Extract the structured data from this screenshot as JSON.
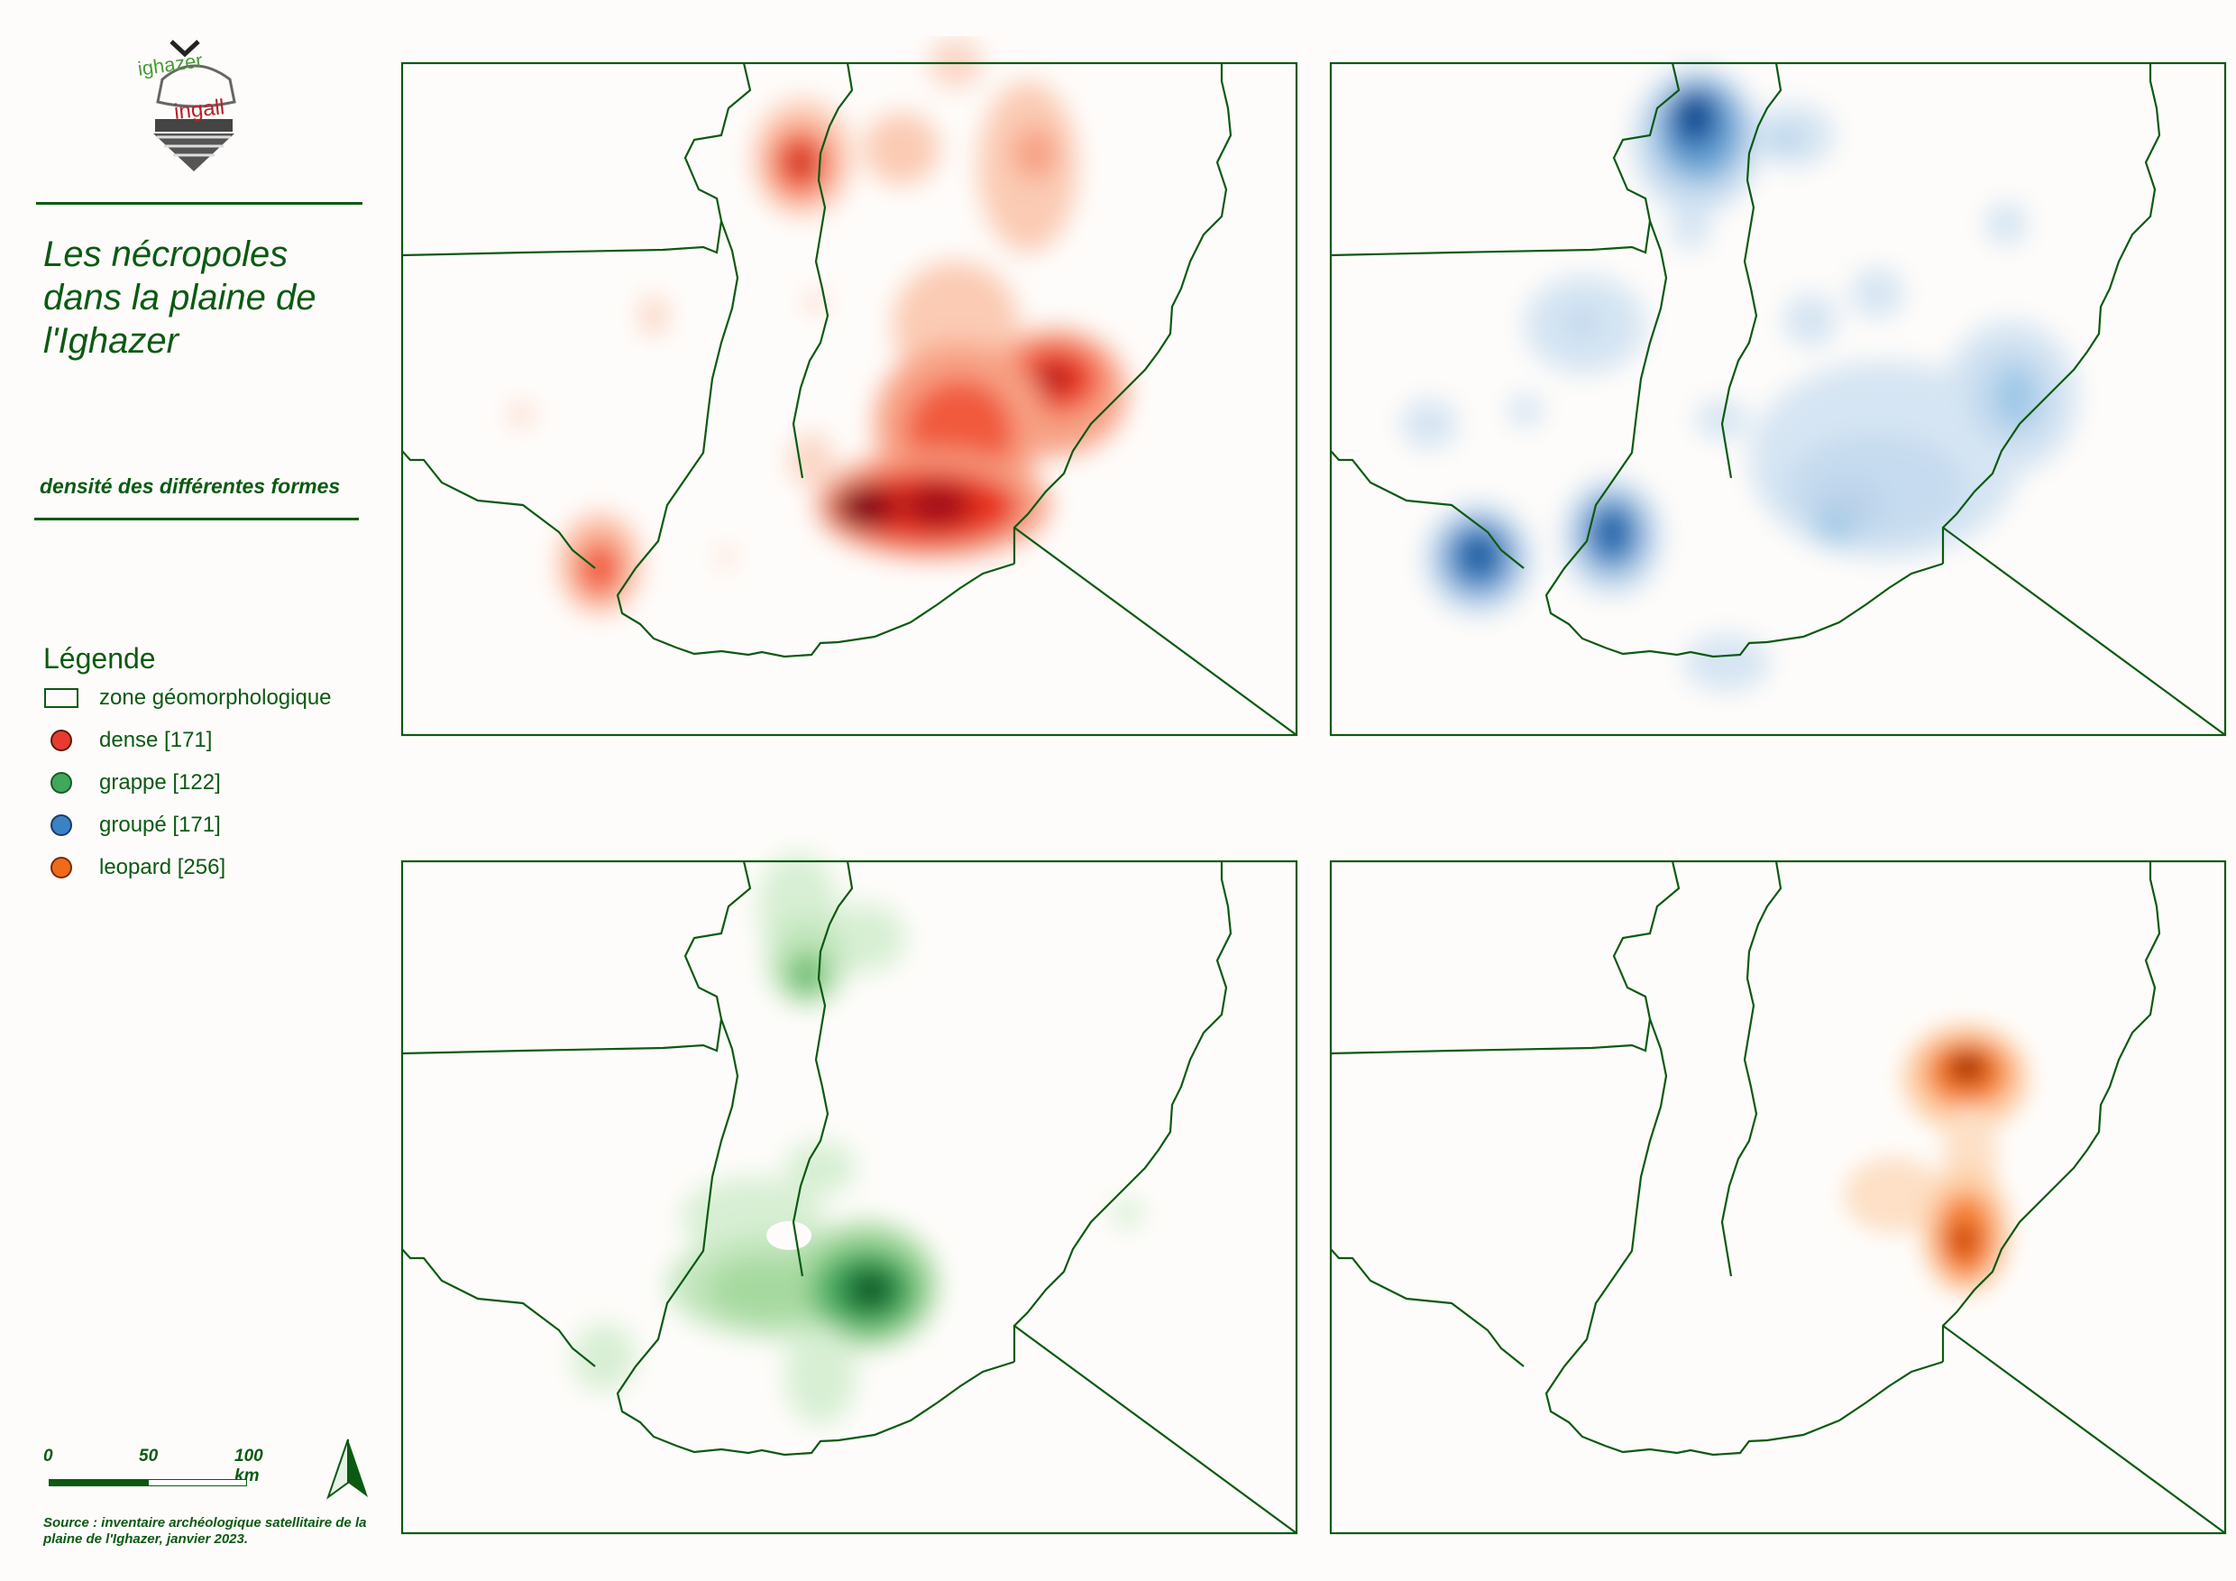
{
  "logo": {
    "text_top": "ighazer",
    "text_bottom": "ingall"
  },
  "title": "Les nécropoles dans la plaine de l'Ighazer",
  "subtitle": "densité des différentes formes",
  "legend": {
    "title": "Légende",
    "items": [
      {
        "label": "zone géomorphologique",
        "type": "box"
      },
      {
        "label": "dense [171]",
        "color": "#e83b2f"
      },
      {
        "label": "grappe [122]",
        "color": "#3fa85a"
      },
      {
        "label": "groupé [171]",
        "color": "#3b82c4"
      },
      {
        "label": "leopard [256]",
        "color": "#f06a1a"
      }
    ]
  },
  "scalebar": {
    "labels": [
      "0",
      "50",
      "100 km"
    ]
  },
  "north_arrow": "north-arrow-icon",
  "source": "Source : inventaire archéologique satellitaire de la plaine de l'Ighazer, janvier 2023."
}
